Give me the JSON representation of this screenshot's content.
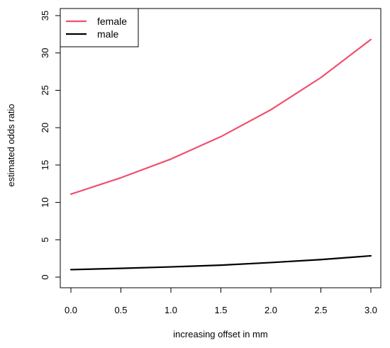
{
  "chart_data": {
    "type": "line",
    "xlabel": "increasing offset in mm",
    "ylabel": "estimated odds ratio",
    "xlim": [
      0,
      3
    ],
    "ylim": [
      0,
      35
    ],
    "x": [
      0.0,
      0.5,
      1.0,
      1.5,
      2.0,
      2.5,
      3.0
    ],
    "x_ticks": [
      "0.0",
      "0.5",
      "1.0",
      "1.5",
      "2.0",
      "2.5",
      "3.0"
    ],
    "y_ticks": [
      "0",
      "5",
      "10",
      "15",
      "20",
      "25",
      "30",
      "35"
    ],
    "legend_position": "top-left",
    "series": [
      {
        "name": "female",
        "color": "#f0506e",
        "values": [
          11.1,
          13.3,
          15.8,
          18.8,
          22.4,
          26.7,
          31.8
        ]
      },
      {
        "name": "male",
        "color": "#000000",
        "values": [
          1.0,
          1.17,
          1.37,
          1.6,
          1.95,
          2.35,
          2.85
        ]
      }
    ]
  }
}
